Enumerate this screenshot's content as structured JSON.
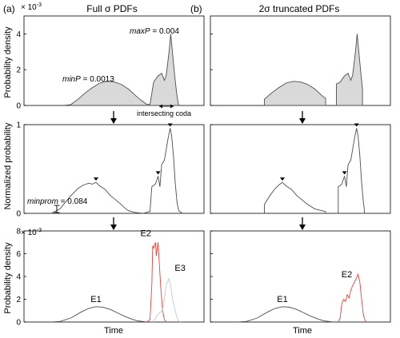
{
  "column_titles": {
    "left": "Full σ PDFs",
    "right": "2σ truncated PDFs"
  },
  "panel_letters": {
    "left": "(a)",
    "right": "(b)"
  },
  "colors": {
    "fill": "#d9d9d9",
    "line": "#4d4d4d",
    "red": "#e8413c",
    "pale": "#c8c8c8",
    "axis": "#000000"
  },
  "chart_data": [
    {
      "id": "a1",
      "type": "area",
      "ylabel": "Probability density",
      "exponent": "× 10",
      "exponent_power": "-3",
      "ylim": [
        0,
        5
      ],
      "yticks": [
        0,
        2,
        4
      ],
      "annotations": {
        "minP_label": "minP",
        "minP_value": " = 0.0013",
        "maxP_label": "maxP",
        "maxP_value": " = 0.004",
        "coda": "intersecting coda"
      },
      "series": [
        {
          "points": [
            [
              0.22,
              0
            ],
            [
              0.26,
              0.05
            ],
            [
              0.3,
              0.35
            ],
            [
              0.34,
              0.7
            ],
            [
              0.38,
              1.0
            ],
            [
              0.42,
              1.25
            ],
            [
              0.46,
              1.35
            ],
            [
              0.5,
              1.32
            ],
            [
              0.54,
              1.18
            ],
            [
              0.58,
              0.92
            ],
            [
              0.62,
              0.55
            ],
            [
              0.65,
              0.3
            ],
            [
              0.67,
              0.15
            ],
            [
              0.68,
              0.07
            ],
            [
              0.7,
              0.06
            ],
            [
              0.72,
              1.3
            ],
            [
              0.745,
              1.65
            ],
            [
              0.765,
              1.8
            ],
            [
              0.78,
              1.4
            ],
            [
              0.79,
              1.7
            ],
            [
              0.8,
              2.5
            ],
            [
              0.808,
              3.2
            ],
            [
              0.815,
              4.0
            ],
            [
              0.822,
              3.3
            ],
            [
              0.83,
              2.4
            ],
            [
              0.84,
              1.4
            ],
            [
              0.848,
              0.7
            ],
            [
              0.855,
              0.2
            ],
            [
              0.86,
              0
            ]
          ]
        }
      ]
    },
    {
      "id": "b1",
      "type": "area",
      "ylim": [
        0,
        5
      ],
      "yticks": [
        0,
        2,
        4
      ],
      "series": [
        {
          "points": [
            [
              0.3,
              0
            ],
            [
              0.3,
              0.35
            ],
            [
              0.34,
              0.7
            ],
            [
              0.38,
              1.0
            ],
            [
              0.42,
              1.25
            ],
            [
              0.46,
              1.35
            ],
            [
              0.5,
              1.32
            ],
            [
              0.54,
              1.18
            ],
            [
              0.58,
              0.92
            ],
            [
              0.62,
              0.55
            ],
            [
              0.64,
              0.4
            ],
            [
              0.64,
              0
            ]
          ]
        },
        {
          "points": [
            [
              0.7,
              0
            ],
            [
              0.7,
              1.2
            ],
            [
              0.72,
              1.3
            ],
            [
              0.745,
              1.65
            ],
            [
              0.765,
              1.8
            ],
            [
              0.78,
              1.4
            ],
            [
              0.79,
              1.7
            ],
            [
              0.8,
              2.5
            ],
            [
              0.808,
              3.2
            ],
            [
              0.815,
              4.0
            ],
            [
              0.822,
              3.3
            ],
            [
              0.83,
              2.4
            ],
            [
              0.84,
              1.4
            ],
            [
              0.845,
              0.9
            ],
            [
              0.845,
              0
            ]
          ]
        }
      ]
    },
    {
      "id": "a2",
      "type": "line",
      "ylabel": "Normalized probability",
      "ylim": [
        0,
        1
      ],
      "yticks": [
        0,
        1
      ],
      "annotations": {
        "minprom_label": "minprom",
        "minprom_value": " = 0.084"
      },
      "series": [
        {
          "points": [
            [
              0.15,
              0
            ],
            [
              0.2,
              0.05
            ],
            [
              0.24,
              0.15
            ],
            [
              0.27,
              0.22
            ],
            [
              0.3,
              0.28
            ],
            [
              0.33,
              0.32
            ],
            [
              0.36,
              0.34
            ],
            [
              0.38,
              0.33
            ],
            [
              0.4,
              0.35
            ],
            [
              0.42,
              0.31
            ],
            [
              0.45,
              0.27
            ],
            [
              0.48,
              0.2
            ],
            [
              0.51,
              0.15
            ],
            [
              0.54,
              0.1
            ],
            [
              0.56,
              0.06
            ],
            [
              0.58,
              0.03
            ],
            [
              0.6,
              0.02
            ],
            [
              0.62,
              0.01
            ],
            [
              0.66,
              0.0
            ],
            [
              0.7,
              0.02
            ],
            [
              0.71,
              0.3
            ],
            [
              0.73,
              0.33
            ],
            [
              0.745,
              0.42
            ],
            [
              0.755,
              0.3
            ],
            [
              0.765,
              0.55
            ],
            [
              0.78,
              0.6
            ],
            [
              0.79,
              0.72
            ],
            [
              0.8,
              0.84
            ],
            [
              0.812,
              0.96
            ],
            [
              0.82,
              0.88
            ],
            [
              0.83,
              0.65
            ],
            [
              0.84,
              0.35
            ],
            [
              0.85,
              0.12
            ],
            [
              0.86,
              0.03
            ],
            [
              0.88,
              0
            ]
          ]
        }
      ],
      "peaks": [
        [
          0.4,
          0.35
        ],
        [
          0.745,
          0.42
        ],
        [
          0.812,
          0.96
        ]
      ]
    },
    {
      "id": "b2",
      "type": "line",
      "ylim": [
        0,
        1
      ],
      "yticks": [
        0,
        1
      ],
      "series": [
        {
          "points": [
            [
              0.3,
              0
            ],
            [
              0.3,
              0.1
            ],
            [
              0.33,
              0.2
            ],
            [
              0.36,
              0.28
            ],
            [
              0.38,
              0.32
            ],
            [
              0.4,
              0.35
            ],
            [
              0.42,
              0.31
            ],
            [
              0.45,
              0.27
            ],
            [
              0.48,
              0.2
            ],
            [
              0.51,
              0.15
            ],
            [
              0.54,
              0.1
            ],
            [
              0.58,
              0.05
            ],
            [
              0.62,
              0.03
            ],
            [
              0.64,
              0.02
            ],
            [
              0.64,
              0
            ]
          ]
        },
        {
          "points": [
            [
              0.71,
              0
            ],
            [
              0.71,
              0.3
            ],
            [
              0.73,
              0.33
            ],
            [
              0.745,
              0.42
            ],
            [
              0.755,
              0.3
            ],
            [
              0.765,
              0.55
            ],
            [
              0.78,
              0.6
            ],
            [
              0.79,
              0.72
            ],
            [
              0.8,
              0.84
            ],
            [
              0.812,
              0.96
            ],
            [
              0.82,
              0.88
            ],
            [
              0.83,
              0.65
            ],
            [
              0.84,
              0.35
            ],
            [
              0.85,
              0.12
            ],
            [
              0.855,
              0.05
            ],
            [
              0.855,
              0
            ]
          ]
        }
      ],
      "peaks": [
        [
          0.4,
          0.35
        ],
        [
          0.745,
          0.42
        ],
        [
          0.812,
          0.96
        ]
      ]
    },
    {
      "id": "a3",
      "type": "line",
      "ylabel": "Probability density",
      "xlabel": "Time",
      "exponent": "× 10",
      "exponent_power": "-3",
      "ylim": [
        0,
        8
      ],
      "yticks": [
        0,
        2,
        4,
        6,
        8
      ],
      "series": [
        {
          "name": "E1",
          "color": "line",
          "points": [
            [
              0.15,
              0
            ],
            [
              0.2,
              0.05
            ],
            [
              0.26,
              0.35
            ],
            [
              0.32,
              0.9
            ],
            [
              0.36,
              1.2
            ],
            [
              0.4,
              1.35
            ],
            [
              0.44,
              1.3
            ],
            [
              0.48,
              1.1
            ],
            [
              0.52,
              0.8
            ],
            [
              0.56,
              0.5
            ],
            [
              0.6,
              0.25
            ],
            [
              0.63,
              0.1
            ],
            [
              0.66,
              0.05
            ],
            [
              0.68,
              0
            ]
          ]
        },
        {
          "name": "E2",
          "color": "red",
          "points": [
            [
              0.68,
              0
            ],
            [
              0.7,
              0.2
            ],
            [
              0.71,
              3.3
            ],
            [
              0.715,
              6.7
            ],
            [
              0.72,
              6.5
            ],
            [
              0.73,
              7.0
            ],
            [
              0.735,
              5.8
            ],
            [
              0.745,
              7.0
            ],
            [
              0.75,
              5.5
            ],
            [
              0.76,
              3.0
            ],
            [
              0.77,
              1.0
            ],
            [
              0.78,
              0.2
            ],
            [
              0.79,
              0
            ]
          ]
        },
        {
          "name": "E3",
          "color": "pale",
          "points": [
            [
              0.72,
              0
            ],
            [
              0.74,
              0.6
            ],
            [
              0.76,
              0.9
            ],
            [
              0.77,
              1.1
            ],
            [
              0.78,
              2.0
            ],
            [
              0.79,
              3.3
            ],
            [
              0.805,
              3.8
            ],
            [
              0.815,
              3.2
            ],
            [
              0.825,
              2.0
            ],
            [
              0.84,
              1.0
            ],
            [
              0.85,
              0.4
            ],
            [
              0.86,
              0.1
            ],
            [
              0.87,
              0
            ]
          ]
        }
      ]
    },
    {
      "id": "b3",
      "type": "line",
      "xlabel": "Time",
      "ylim": [
        0,
        8
      ],
      "yticks": [
        0,
        2,
        4,
        6,
        8
      ],
      "series": [
        {
          "name": "E1",
          "color": "line",
          "points": [
            [
              0.15,
              0
            ],
            [
              0.2,
              0.05
            ],
            [
              0.26,
              0.35
            ],
            [
              0.32,
              0.9
            ],
            [
              0.36,
              1.2
            ],
            [
              0.4,
              1.35
            ],
            [
              0.44,
              1.3
            ],
            [
              0.48,
              1.1
            ],
            [
              0.52,
              0.8
            ],
            [
              0.56,
              0.5
            ],
            [
              0.6,
              0.25
            ],
            [
              0.63,
              0.1
            ],
            [
              0.66,
              0.05
            ],
            [
              0.68,
              0
            ]
          ]
        },
        {
          "name": "E2",
          "color": "red",
          "points": [
            [
              0.71,
              0
            ],
            [
              0.72,
              0.3
            ],
            [
              0.73,
              1.6
            ],
            [
              0.74,
              2.0
            ],
            [
              0.75,
              1.8
            ],
            [
              0.76,
              2.4
            ],
            [
              0.77,
              2.1
            ],
            [
              0.78,
              2.8
            ],
            [
              0.79,
              3.2
            ],
            [
              0.8,
              3.5
            ],
            [
              0.81,
              3.8
            ],
            [
              0.82,
              4.2
            ],
            [
              0.83,
              3.5
            ],
            [
              0.84,
              2.0
            ],
            [
              0.85,
              0.6
            ],
            [
              0.86,
              0.1
            ],
            [
              0.865,
              0
            ]
          ]
        }
      ]
    }
  ]
}
